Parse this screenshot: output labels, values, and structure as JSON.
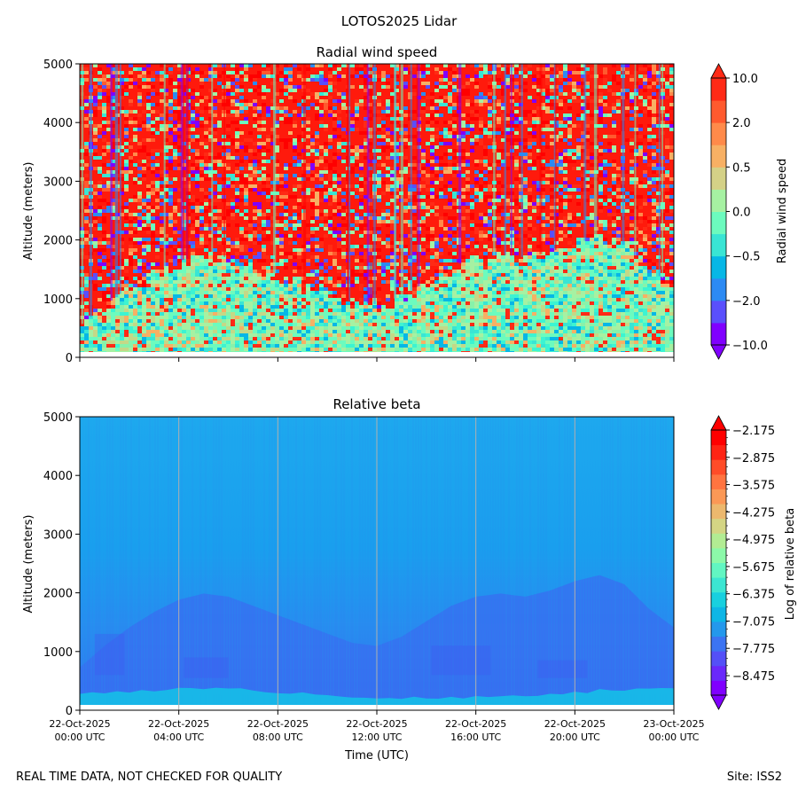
{
  "figure_title": "LOTOS2025 Lidar",
  "footer": {
    "left": "REAL TIME DATA, NOT CHECKED FOR QUALITY",
    "right": "Site: ISS2"
  },
  "colors": {
    "rainbow": [
      "#8000ff",
      "#4c6cf6",
      "#0bc0e6",
      "#3cf4d2",
      "#88f2aa",
      "#c4d887",
      "#f6b066",
      "#ff6a3a",
      "#ff1f10",
      "#ff0000"
    ],
    "gridline": "#b0b0b0",
    "beta_background": "#1aa2ee",
    "beta_boundary_layer": "#3a6cf2",
    "beta_surface": "#12c8e6"
  },
  "chart_data": [
    {
      "id": "wind",
      "type": "heatmap",
      "title": "Radial wind speed",
      "ylabel": "Altitude (meters)",
      "ylim": [
        0,
        5000
      ],
      "yticks": [
        "0",
        "1000",
        "2000",
        "3000",
        "4000",
        "5000"
      ],
      "x_range_hours": [
        0,
        24
      ],
      "colorbar": {
        "label": "Radial wind speed",
        "tick_labels": [
          "−10.0",
          "−2.0",
          "−0.5",
          "0.0",
          "0.5",
          "2.0",
          "10.0"
        ],
        "colors": [
          "#8000ff",
          "#5a4ffc",
          "#2c8af3",
          "#06b7e6",
          "#39e5d4",
          "#6cfbbe",
          "#a6f1a2",
          "#d4d187",
          "#f7b064",
          "#ff8a4a",
          "#ff5a2e",
          "#ff2a16"
        ],
        "extend": "both"
      },
      "description_layers": {
        "mixed_layer_top_m": [
          [
            0,
            550
          ],
          [
            1,
            900
          ],
          [
            2,
            1200
          ],
          [
            3,
            1450
          ],
          [
            4,
            1650
          ],
          [
            5,
            1750
          ],
          [
            6,
            1700
          ],
          [
            7,
            1550
          ],
          [
            8,
            1400
          ],
          [
            9,
            1250
          ],
          [
            10,
            1100
          ],
          [
            11,
            950
          ],
          [
            12,
            900
          ],
          [
            13,
            1050
          ],
          [
            14,
            1300
          ],
          [
            15,
            1550
          ],
          [
            16,
            1700
          ],
          [
            17,
            1750
          ],
          [
            18,
            1700
          ],
          [
            19,
            1800
          ],
          [
            20,
            1950
          ],
          [
            21,
            2050
          ],
          [
            22,
            1900
          ],
          [
            23,
            1500
          ],
          [
            24,
            1200
          ]
        ]
      }
    },
    {
      "id": "beta",
      "type": "heatmap",
      "title": "Relative beta",
      "ylabel": "Altitude (meters)",
      "xlabel": "Time (UTC)",
      "ylim": [
        0,
        5000
      ],
      "yticks": [
        "0",
        "1000",
        "2000",
        "3000",
        "4000",
        "5000"
      ],
      "x_range_hours": [
        0,
        24
      ],
      "xticks": [
        {
          "date": "22-Oct-2025",
          "time": "00:00 UTC"
        },
        {
          "date": "22-Oct-2025",
          "time": "04:00 UTC"
        },
        {
          "date": "22-Oct-2025",
          "time": "08:00 UTC"
        },
        {
          "date": "22-Oct-2025",
          "time": "12:00 UTC"
        },
        {
          "date": "22-Oct-2025",
          "time": "16:00 UTC"
        },
        {
          "date": "22-Oct-2025",
          "time": "20:00 UTC"
        },
        {
          "date": "23-Oct-2025",
          "time": "00:00 UTC"
        }
      ],
      "colorbar": {
        "label": "Log of relative beta",
        "tick_labels": [
          "−8.475",
          "−7.775",
          "−7.075",
          "−6.375",
          "−5.675",
          "−4.975",
          "−4.275",
          "−3.575",
          "−2.875",
          "−2.175"
        ],
        "colors": [
          "#8000ff",
          "#6a28fb",
          "#5450f7",
          "#3c74f2",
          "#2498ec",
          "#0eb6e6",
          "#18d0df",
          "#3ce6d2",
          "#62f6c2",
          "#8cf9a9",
          "#b2ec93",
          "#d4d584",
          "#ecb86e",
          "#fb9856",
          "#ff7440",
          "#ff4c28",
          "#ff2414",
          "#ff0000"
        ],
        "extend": "both"
      }
    }
  ]
}
